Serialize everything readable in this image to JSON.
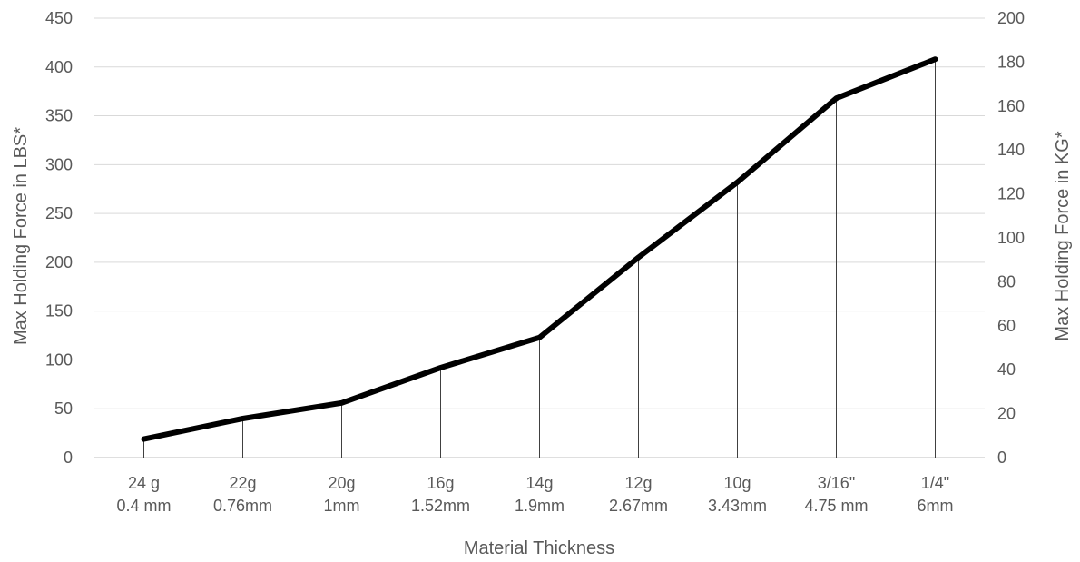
{
  "chart_data": {
    "type": "line",
    "categories": [
      [
        "24 g",
        "0.4 mm"
      ],
      [
        "22g",
        "0.76mm"
      ],
      [
        "20g",
        "1mm"
      ],
      [
        "16g",
        "1.52mm"
      ],
      [
        "14g",
        "1.9mm"
      ],
      [
        "12g",
        "2.67mm"
      ],
      [
        "10g",
        "3.43mm"
      ],
      [
        "3/16\"",
        "4.75 mm"
      ],
      [
        "1/4\"",
        "6mm"
      ]
    ],
    "series": [
      {
        "values": [
          19,
          40,
          56,
          92,
          123,
          205,
          282,
          368,
          408
        ],
        "color": "#000000",
        "drop_lines": true
      }
    ],
    "xlabel": "Material Thickness",
    "ylabel": "Max Holding Force in LBS*",
    "y2label": "Max Holding Force in KG*",
    "ylim": [
      0,
      450
    ],
    "yticks": [
      0,
      50,
      100,
      150,
      200,
      250,
      300,
      350,
      400,
      450
    ],
    "y2lim": [
      0,
      200
    ],
    "y2ticks": [
      0,
      20,
      40,
      60,
      80,
      100,
      120,
      140,
      160,
      180,
      200
    ],
    "grid": true,
    "legend": "none"
  }
}
